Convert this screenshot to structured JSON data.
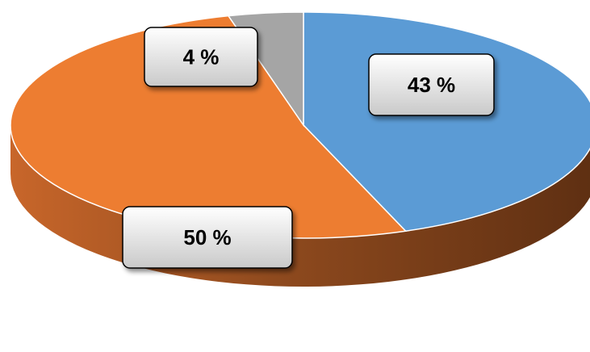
{
  "chart_data": {
    "type": "pie",
    "style": "3d",
    "categories": [
      "",
      "",
      ""
    ],
    "values": [
      43,
      50,
      4
    ],
    "data_labels": [
      "43 %",
      "50 %",
      "4 %"
    ],
    "colors": [
      "#5b9bd5",
      "#ed7d31",
      "#a5a5a5"
    ],
    "title": "",
    "legend": "none"
  }
}
